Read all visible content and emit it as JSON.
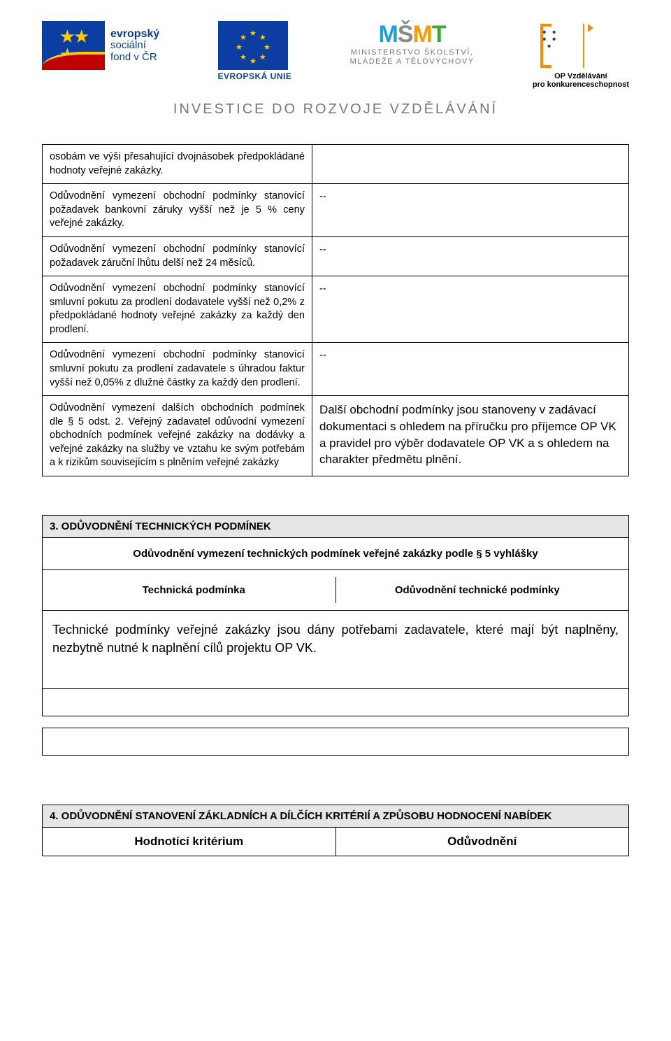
{
  "header": {
    "esf_line1": "evropský",
    "esf_line2": "sociální",
    "esf_line3": "fond v ČR",
    "eu_caption": "EVROPSKÁ UNIE",
    "msmt_line1": "MINISTERSTVO ŠKOLSTVÍ,",
    "msmt_line2": "MLÁDEŽE A TĚLOVÝCHOVY",
    "opvk_line1": "OP Vzdělávání",
    "opvk_line2": "pro konkurenceschopnost",
    "slogan": "INVESTICE DO ROZVOJE VZDĚLÁVÁNÍ"
  },
  "table1": {
    "rows": [
      {
        "left": "osobám ve výši přesahující dvojnásobek předpokládané hodnoty veřejné zakázky.",
        "right": ""
      },
      {
        "left": "Odůvodnění vymezení obchodní podmínky stanovící požadavek bankovní záruky vyšší než je 5 % ceny veřejné zakázky.",
        "right": "--"
      },
      {
        "left": "Odůvodnění vymezení obchodní podmínky stanovící požadavek záruční lhůtu delší než 24 měsíců.",
        "right": "--"
      },
      {
        "left": "Odůvodnění vymezení obchodní podmínky stanovící smluvní pokutu za prodlení dodavatele vyšší než 0,2% z předpokládané hodnoty veřejné zakázky za každý den prodlení.",
        "right": "--"
      },
      {
        "left": "Odůvodnění vymezení obchodní podmínky stanovící smluvní pokutu za prodlení zadavatele s úhradou faktur vyšší než 0,05% z dlužné částky za každý den prodlení.",
        "right": "--"
      },
      {
        "left": "Odůvodnění vymezení dalších obchodních podmínek dle § 5 odst. 2. Veřejný zadavatel odůvodní vymezení obchodních podmínek veřejné zakázky na dodávky a veřejné zakázky na služby ve vztahu ke svým potřebám a k rizikům souvisejícím s plněním veřejné zakázky",
        "right": "Další obchodní podmínky jsou stanoveny v zadávací dokumentaci s ohledem na příručku pro příjemce OP VK a pravidel pro výběr dodavatele OP VK a s ohledem na charakter předmětu plnění."
      }
    ]
  },
  "section3": {
    "heading": "3.  ODŮVODNĚNÍ TECHNICKÝCH PODMÍNEK",
    "title": "Odůvodnění vymezení technických podmínek veřejné zakázky podle § 5 vyhlášky",
    "col_left": "Technická podmínka",
    "col_right": "Odůvodnění technické podmínky",
    "body": "Technické podmínky veřejné zakázky jsou dány potřebami zadavatele, které mají být naplněny, nezbytně nutné k naplnění cílů projektu OP VK."
  },
  "section4": {
    "heading": "4.  ODŮVODNĚNÍ STANOVENÍ ZÁKLADNÍCH A DÍLČÍCH KRITÉRIÍ A ZPŮSOBU HODNOCENÍ NABÍDEK",
    "col_left": "Hodnotící kritérium",
    "col_right": "Odůvodnění"
  }
}
